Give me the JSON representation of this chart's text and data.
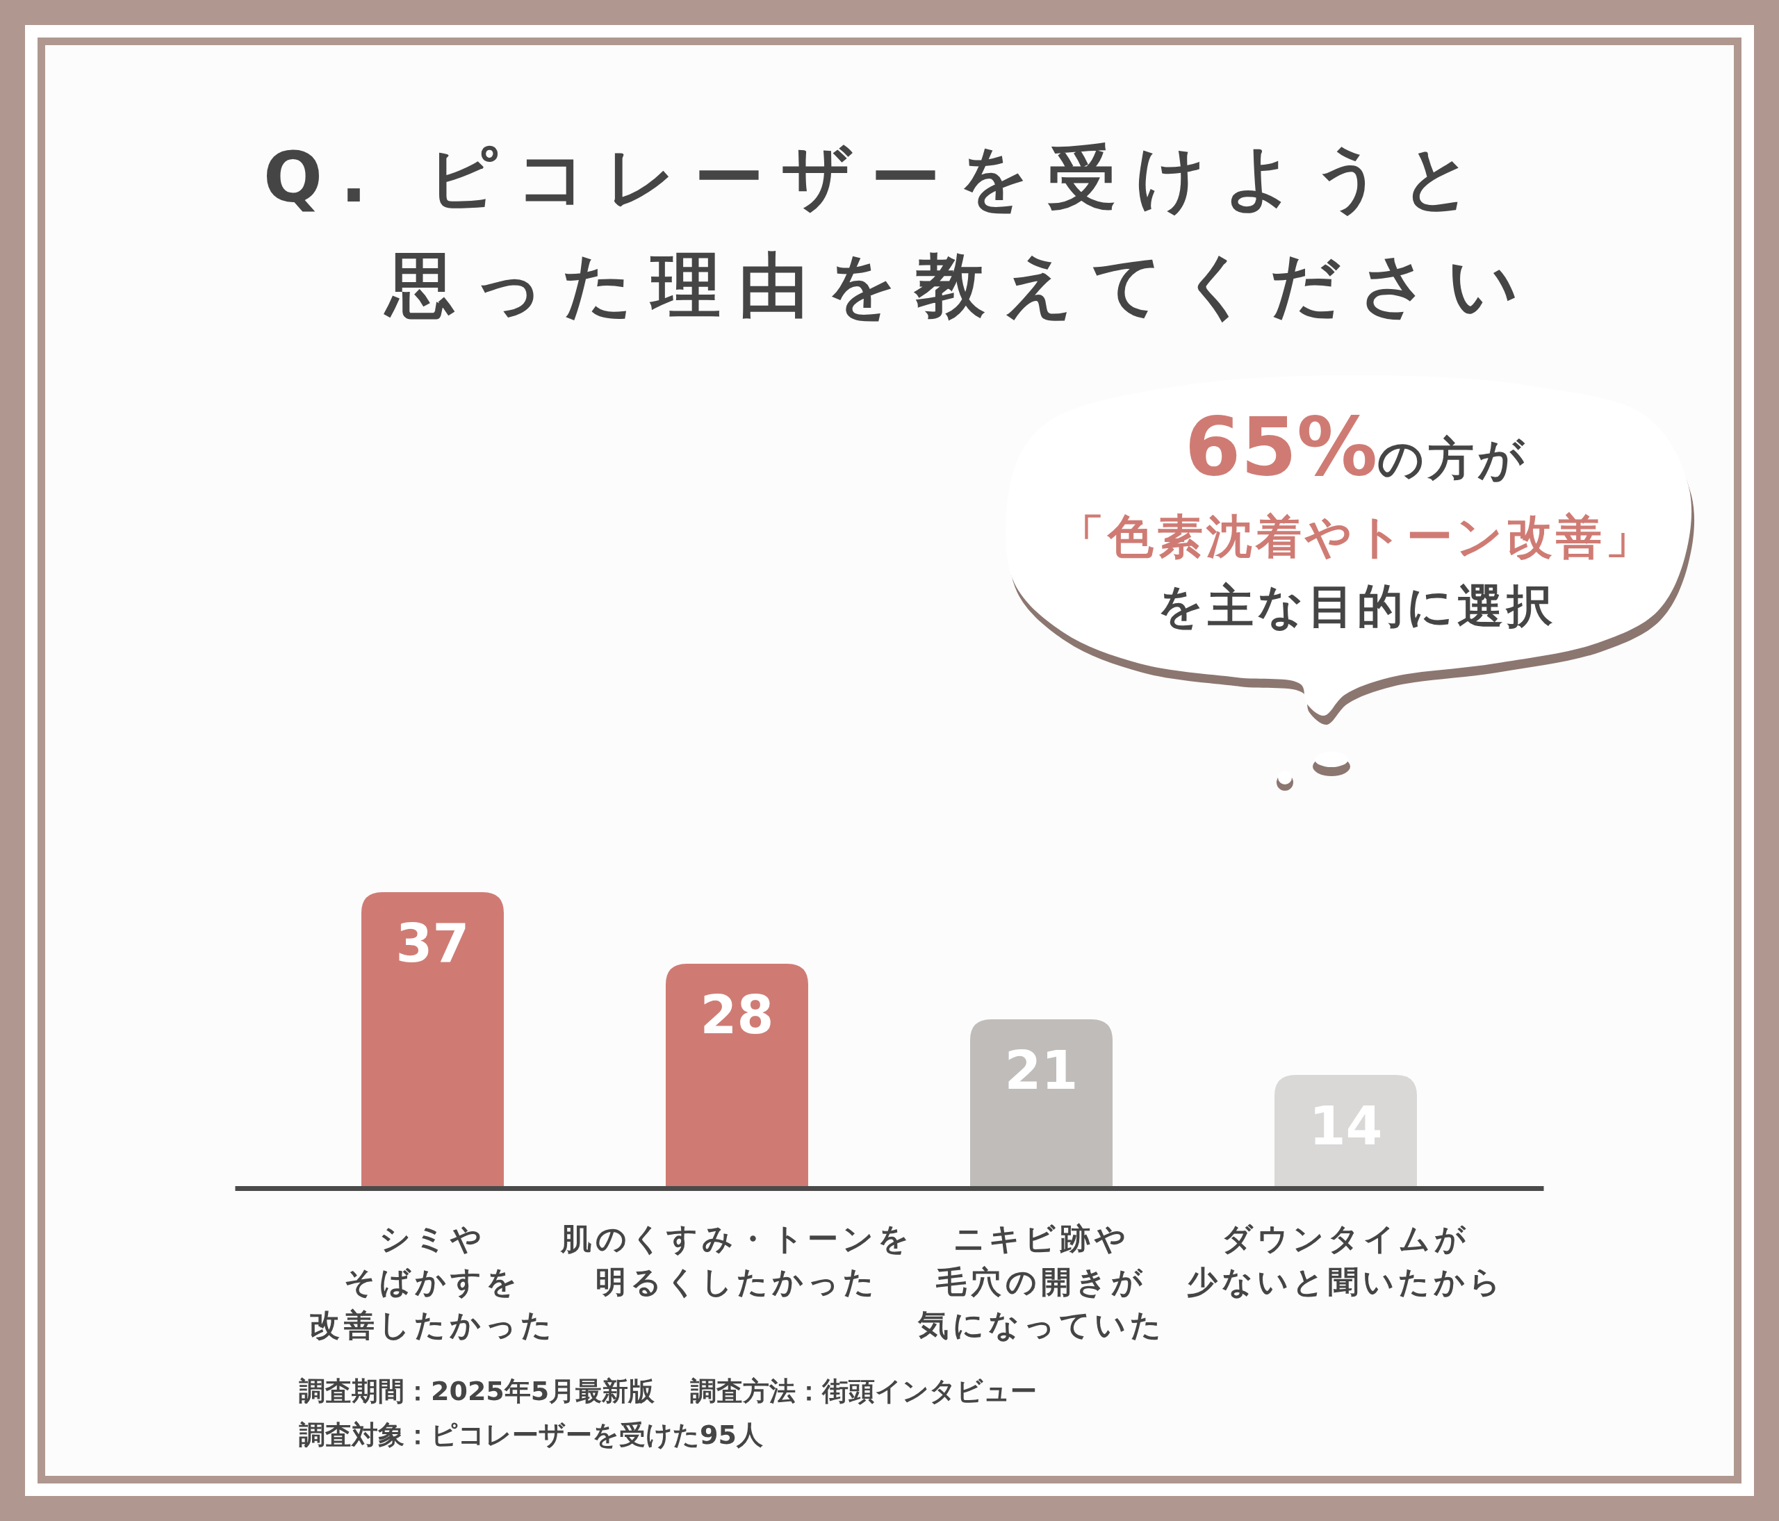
{
  "chart_data": {
    "type": "bar",
    "title": "Q. ピコレーザーを受けようと思った理由を教えてください",
    "categories": [
      "シミやそばかすを改善したかった",
      "肌のくすみ・トーンを明るくしたかった",
      "ニキビ跡や毛穴の開きが気になっていた",
      "ダウンタイムが少ないと聞いたから"
    ],
    "values": [
      37,
      28,
      21,
      14
    ],
    "colors": [
      "#cf7b74",
      "#cf7b74",
      "#bfbcba",
      "#d9d8d7"
    ],
    "data_labels": true,
    "tick_labels": "x",
    "annotations": [
      "65%の方が「色素沈着やトーン改善」を主な目的に選択",
      "調査期間：2025年5月最新版",
      "調査方法：街頭インタビュー",
      "調査対象：ピコレーザーを受けた95人"
    ]
  }
}
